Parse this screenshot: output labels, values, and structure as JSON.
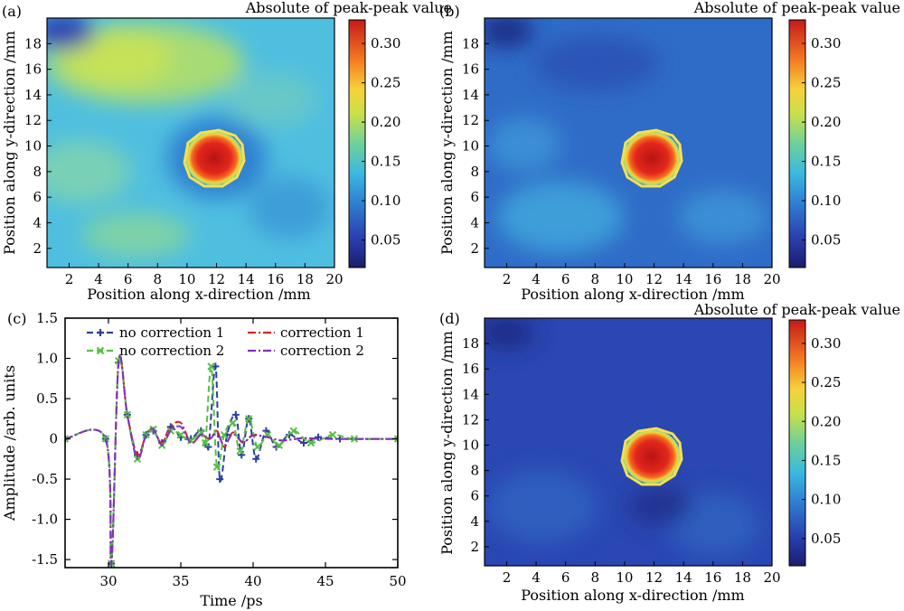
{
  "chart_data": [
    {
      "id": "a",
      "panel_label": "(a)",
      "type": "heatmap",
      "colorbar_title": "Absolute of peak-peak value",
      "xlabel": "Position along x-direction /mm",
      "ylabel": "Position along y-direction /mm",
      "xlim": [
        0.5,
        20
      ],
      "ylim": [
        0.5,
        20
      ],
      "xticks": [
        2,
        4,
        6,
        8,
        10,
        12,
        14,
        16,
        18,
        20
      ],
      "yticks": [
        2,
        4,
        6,
        8,
        10,
        12,
        14,
        16,
        18
      ],
      "colorbar_range": [
        0.015,
        0.33
      ],
      "colorbar_ticks": [
        "0.05",
        "0.10",
        "0.15",
        "0.20",
        "0.25",
        "0.30"
      ],
      "colormap": "jet",
      "background_level": 0.12,
      "hot_region": {
        "center": [
          12.2,
          9.0
        ],
        "radius": [
          2.3,
          2.0
        ],
        "value": 0.32
      }
    },
    {
      "id": "b",
      "panel_label": "(b)",
      "type": "heatmap",
      "colorbar_title": "Absolute of peak-peak value",
      "xlabel": "Position along x-direction /mm",
      "ylabel": "Position along y-direction /mm",
      "xlim": [
        0.5,
        20
      ],
      "ylim": [
        0.5,
        20
      ],
      "xticks": [
        2,
        4,
        6,
        8,
        10,
        12,
        14,
        16,
        18,
        20
      ],
      "yticks": [
        2,
        4,
        6,
        8,
        10,
        12,
        14,
        16,
        18
      ],
      "colorbar_range": [
        0.015,
        0.33
      ],
      "colorbar_ticks": [
        "0.05",
        "0.10",
        "0.15",
        "0.20",
        "0.25",
        "0.30"
      ],
      "colormap": "jet",
      "background_level": 0.085,
      "hot_region": {
        "center": [
          12.2,
          9.0
        ],
        "radius": [
          2.3,
          2.0
        ],
        "value": 0.32
      }
    },
    {
      "id": "c",
      "panel_label": "(c)",
      "type": "line",
      "xlabel": "Time /ps",
      "ylabel": "Amplitude /arb. units",
      "xlim": [
        27,
        50
      ],
      "ylim": [
        -1.6,
        1.5
      ],
      "xticks": [
        30,
        35,
        40,
        45,
        50
      ],
      "yticks": [
        "-1.5",
        "-1.0",
        "-0.5",
        "0",
        "0.5",
        "1.0",
        "1.5"
      ],
      "legend_position": "top",
      "series": [
        {
          "name": "no correction 1",
          "color": "#2b3fa0",
          "style": "dashed",
          "marker": "+",
          "x": [
            27,
            29.8,
            30.2,
            30.7,
            31.3,
            32.0,
            32.6,
            33.1,
            33.7,
            34.3,
            35.0,
            35.7,
            36.4,
            36.9,
            37.4,
            37.7,
            38.2,
            38.8,
            39.2,
            39.7,
            40.2,
            40.9,
            41.6,
            42.5,
            43.5,
            44.5,
            46,
            50
          ],
          "y": [
            0,
            0,
            -1.55,
            0.95,
            0.3,
            -0.2,
            0.05,
            0.1,
            -0.05,
            0.15,
            0.02,
            0.0,
            0.1,
            -0.1,
            0.9,
            -0.5,
            0.05,
            0.3,
            -0.2,
            0.25,
            -0.25,
            0.1,
            -0.1,
            0.05,
            -0.05,
            0.02,
            0,
            0
          ]
        },
        {
          "name": "correction 1",
          "color": "#e02020",
          "style": "dashdot",
          "marker": "",
          "x": [
            27,
            29.8,
            30.2,
            30.7,
            31.3,
            32.0,
            32.6,
            33.1,
            33.7,
            34.3,
            35.0,
            35.7,
            36.4,
            37.0,
            37.5,
            38.0,
            38.6,
            39.3,
            40.0,
            41.0,
            42.0,
            43.5,
            45,
            50
          ],
          "y": [
            0,
            0,
            -1.55,
            0.95,
            0.3,
            -0.2,
            0.05,
            0.1,
            -0.05,
            0.15,
            0.2,
            -0.05,
            0.05,
            0.0,
            0.1,
            -0.1,
            0.08,
            -0.05,
            0.05,
            0.02,
            -0.02,
            0.01,
            0,
            0
          ]
        },
        {
          "name": "no correction 2",
          "color": "#55c040",
          "style": "dashed",
          "marker": "x",
          "x": [
            27,
            29.8,
            30.2,
            30.7,
            31.3,
            32.0,
            32.6,
            33.1,
            33.7,
            34.3,
            35.0,
            35.7,
            36.4,
            36.7,
            37.1,
            37.5,
            38.0,
            38.6,
            39.1,
            39.7,
            40.3,
            41.0,
            41.8,
            42.8,
            44,
            45.5,
            47,
            50
          ],
          "y": [
            0,
            0,
            -1.55,
            0.97,
            0.3,
            -0.25,
            0.05,
            0.12,
            -0.08,
            0.1,
            0.05,
            -0.02,
            0.08,
            -0.05,
            0.9,
            -0.35,
            0.05,
            0.2,
            -0.15,
            0.25,
            -0.1,
            0.05,
            -0.08,
            0.1,
            -0.05,
            0.05,
            0,
            0
          ]
        },
        {
          "name": "correction 2",
          "color": "#8030c0",
          "style": "dashdot",
          "marker": "",
          "x": [
            27,
            29.8,
            30.2,
            30.7,
            31.3,
            32.0,
            32.6,
            33.1,
            33.7,
            34.3,
            35.0,
            35.7,
            36.4,
            37.0,
            37.5,
            38.0,
            38.6,
            39.3,
            40.0,
            41.0,
            42.0,
            43.5,
            45,
            50
          ],
          "y": [
            0,
            0,
            -1.55,
            0.97,
            0.3,
            -0.25,
            0.05,
            0.12,
            -0.08,
            0.1,
            0.15,
            -0.05,
            0.05,
            0.0,
            0.08,
            -0.08,
            0.06,
            -0.04,
            0.04,
            0.02,
            -0.02,
            0.01,
            0,
            0
          ]
        }
      ]
    },
    {
      "id": "d",
      "panel_label": "(d)",
      "type": "heatmap",
      "colorbar_title": "Absolute of peak-peak value",
      "xlabel": "Position along x-direction /mm",
      "ylabel": "Position along y-direction /mm",
      "xlim": [
        0.5,
        20
      ],
      "ylim": [
        0.5,
        20
      ],
      "xticks": [
        2,
        4,
        6,
        8,
        10,
        12,
        14,
        16,
        18,
        20
      ],
      "yticks": [
        2,
        4,
        6,
        8,
        10,
        12,
        14,
        16,
        18
      ],
      "colorbar_range": [
        0.015,
        0.33
      ],
      "colorbar_ticks": [
        "0.05",
        "0.10",
        "0.15",
        "0.20",
        "0.25",
        "0.30"
      ],
      "colormap": "jet",
      "background_level": 0.055,
      "hot_region": {
        "center": [
          12.2,
          9.0
        ],
        "radius": [
          2.3,
          2.0
        ],
        "value": 0.32
      }
    }
  ]
}
